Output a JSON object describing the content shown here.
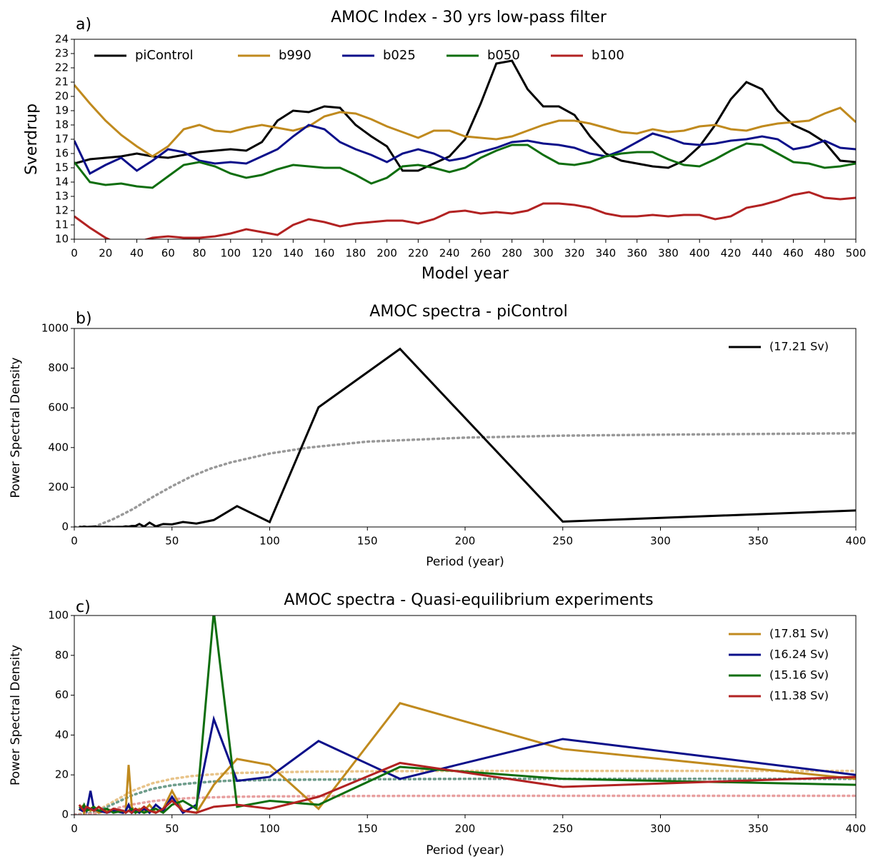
{
  "chart_data": [
    {
      "type": "line",
      "panel_label": "a)",
      "title": "AMOC Index - 30 yrs low-pass filter",
      "x_label": "Model year",
      "y_label": "Sverdrup",
      "x": [
        0,
        10,
        20,
        30,
        40,
        50,
        60,
        70,
        80,
        90,
        100,
        110,
        120,
        130,
        140,
        150,
        160,
        170,
        180,
        190,
        200,
        210,
        220,
        230,
        240,
        250,
        260,
        270,
        280,
        290,
        300,
        310,
        320,
        330,
        340,
        350,
        360,
        370,
        380,
        390,
        400,
        410,
        420,
        430,
        440,
        450,
        460,
        470,
        480,
        490,
        500
      ],
      "series": [
        {
          "name": "piControl",
          "color": "#000000",
          "values": [
            15.3,
            15.6,
            15.7,
            15.8,
            16,
            15.8,
            15.7,
            15.9,
            16.1,
            16.2,
            16.3,
            16.2,
            16.8,
            18.3,
            19,
            18.9,
            19.3,
            19.2,
            18,
            17.2,
            16.5,
            14.8,
            14.8,
            15.3,
            15.8,
            17,
            19.5,
            22.3,
            22.5,
            20.5,
            19.3,
            19.3,
            18.7,
            17.2,
            16,
            15.5,
            15.3,
            15.1,
            15,
            15.5,
            16.5,
            18,
            19.8,
            21,
            20.5,
            19,
            18,
            17.5,
            16.8,
            15.5,
            15.4
          ]
        },
        {
          "name": "b990",
          "color": "#c08a1e",
          "values": [
            20.8,
            19.5,
            18.3,
            17.3,
            16.5,
            15.8,
            16.5,
            17.7,
            18,
            17.6,
            17.5,
            17.8,
            18,
            17.8,
            17.6,
            17.9,
            18.6,
            18.9,
            18.8,
            18.4,
            17.9,
            17.5,
            17.1,
            17.6,
            17.6,
            17.2,
            17.1,
            17,
            17.2,
            17.6,
            18,
            18.3,
            18.3,
            18.1,
            17.8,
            17.5,
            17.4,
            17.7,
            17.5,
            17.6,
            17.9,
            18,
            17.7,
            17.6,
            17.9,
            18.1,
            18.2,
            18.3,
            18.8,
            19.2,
            18.2
          ]
        },
        {
          "name": "b025",
          "color": "#0b0f8a",
          "values": [
            16.9,
            14.6,
            15.2,
            15.7,
            14.8,
            15.5,
            16.3,
            16.1,
            15.5,
            15.3,
            15.4,
            15.3,
            15.8,
            16.3,
            17.2,
            18,
            17.7,
            16.8,
            16.3,
            15.9,
            15.4,
            16,
            16.3,
            16,
            15.5,
            15.7,
            16.1,
            16.4,
            16.8,
            16.9,
            16.7,
            16.6,
            16.4,
            16,
            15.8,
            16.2,
            16.8,
            17.4,
            17.1,
            16.7,
            16.6,
            16.7,
            16.9,
            17,
            17.2,
            17,
            16.3,
            16.5,
            16.9,
            16.4,
            16.3
          ]
        },
        {
          "name": "b050",
          "color": "#0e6e0e",
          "values": [
            15.4,
            14,
            13.8,
            13.9,
            13.7,
            13.6,
            14.4,
            15.2,
            15.4,
            15.1,
            14.6,
            14.3,
            14.5,
            14.9,
            15.2,
            15.1,
            15,
            15,
            14.5,
            13.9,
            14.3,
            15.1,
            15.2,
            15,
            14.7,
            15,
            15.7,
            16.2,
            16.6,
            16.6,
            15.9,
            15.3,
            15.2,
            15.4,
            15.8,
            16,
            16.1,
            16.1,
            15.6,
            15.2,
            15.1,
            15.6,
            16.2,
            16.7,
            16.6,
            16,
            15.4,
            15.3,
            15,
            15.1,
            15.3
          ]
        },
        {
          "name": "b100",
          "color": "#b22222",
          "values": [
            11.6,
            10.8,
            10.1,
            9.6,
            9.8,
            10.1,
            10.2,
            10.1,
            10.1,
            10.2,
            10.4,
            10.7,
            10.5,
            10.3,
            11,
            11.4,
            11.2,
            10.9,
            11.1,
            11.2,
            11.3,
            11.3,
            11.1,
            11.4,
            11.9,
            12,
            11.8,
            11.9,
            11.8,
            12,
            12.5,
            12.5,
            12.4,
            12.2,
            11.8,
            11.6,
            11.6,
            11.7,
            11.6,
            11.7,
            11.7,
            11.4,
            11.6,
            12.2,
            12.4,
            12.7,
            13.1,
            13.3,
            12.9,
            12.8,
            12.9
          ]
        }
      ],
      "xlim": [
        0,
        500
      ],
      "xticks": [
        0,
        20,
        40,
        60,
        80,
        100,
        120,
        140,
        160,
        180,
        200,
        220,
        240,
        260,
        280,
        300,
        320,
        340,
        360,
        380,
        400,
        420,
        440,
        460,
        480,
        500
      ],
      "ylim": [
        10,
        24
      ],
      "yticks": [
        10,
        11,
        12,
        13,
        14,
        15,
        16,
        17,
        18,
        19,
        20,
        21,
        22,
        23,
        24
      ],
      "legend": "upper left"
    },
    {
      "type": "line",
      "panel_label": "b)",
      "title": "AMOC spectra - piControl",
      "x_label": "Period (year)",
      "y_label": "Power Spectral Density",
      "x": [
        2.5,
        4,
        5,
        6.3,
        8.3,
        10,
        12.5,
        16.7,
        20,
        25,
        26.3,
        27.8,
        29.4,
        31.3,
        33.3,
        35.7,
        38.5,
        41.7,
        45.5,
        50,
        55.6,
        62.5,
        71.4,
        83.3,
        100,
        125,
        166.7,
        250,
        400
      ],
      "series": [
        {
          "name": "(17.21 Sv)",
          "color": "#000000",
          "values": [
            1,
            0,
            2,
            0,
            1,
            2,
            0,
            1,
            0,
            1,
            3,
            2,
            5,
            5,
            15,
            2,
            22,
            3,
            15,
            13,
            25,
            17,
            35,
            105,
            25,
            603,
            897,
            27,
            83
          ]
        },
        {
          "style": "dotted",
          "color": "#999999",
          "x": [
            0,
            10,
            20,
            30,
            40,
            50,
            60,
            70,
            80,
            100,
            120,
            150,
            200,
            250,
            300,
            400
          ],
          "values": [
            0,
            0,
            40,
            90,
            150,
            205,
            255,
            295,
            325,
            370,
            400,
            430,
            450,
            460,
            465,
            472
          ]
        }
      ],
      "xlim": [
        0,
        400
      ],
      "xticks": [
        0,
        50,
        100,
        150,
        200,
        250,
        300,
        350,
        400
      ],
      "ylim": [
        0,
        1000
      ],
      "yticks": [
        0,
        200,
        400,
        600,
        800,
        1000
      ],
      "legend": "upper right"
    },
    {
      "type": "line",
      "panel_label": "c)",
      "title": "AMOC spectra - Quasi-equilibrium experiments",
      "x_label": "Period (year)",
      "y_label": "Power Spectral Density",
      "x": [
        2.5,
        4,
        5,
        6.3,
        8.3,
        10,
        12.5,
        16.7,
        20,
        25,
        26.3,
        27.8,
        29.4,
        31.3,
        33.3,
        35.7,
        38.5,
        41.7,
        45.5,
        50,
        55.6,
        62.5,
        71.4,
        83.3,
        100,
        125,
        166.7,
        250,
        400
      ],
      "series": [
        {
          "name": "(17.81 Sv)",
          "color": "#c08a1e",
          "values": [
            2,
            4,
            1,
            3,
            2,
            3,
            1,
            2,
            2,
            1,
            2,
            25,
            4,
            1,
            3,
            2,
            5,
            1,
            3,
            12,
            2,
            1,
            15,
            28,
            25,
            3,
            56,
            33,
            18
          ]
        },
        {
          "name": "(16.24 Sv)",
          "color": "#0b0f8a",
          "values": [
            3,
            2,
            4,
            2,
            12,
            3,
            2,
            1,
            2,
            1,
            2,
            5,
            1,
            2,
            1,
            3,
            1,
            5,
            2,
            9,
            1,
            5,
            48,
            17,
            19,
            37,
            18,
            38,
            20
          ]
        },
        {
          "name": "(15.16 Sv)",
          "color": "#0e6e0e",
          "values": [
            4,
            3,
            5,
            2,
            3,
            4,
            2,
            3,
            1,
            2,
            1,
            2,
            3,
            1,
            2,
            1,
            2,
            3,
            1,
            5,
            7,
            3,
            102,
            4,
            7,
            5,
            24,
            18,
            15
          ]
        },
        {
          "name": "(11.38 Sv)",
          "color": "#b22222",
          "values": [
            5,
            3,
            2,
            4,
            3,
            2,
            4,
            1,
            3,
            2,
            1,
            2,
            1,
            3,
            2,
            4,
            2,
            1,
            3,
            7,
            2,
            1,
            4,
            5,
            3,
            9,
            26,
            14,
            19
          ]
        },
        {
          "style": "dotted",
          "color": "#e8c48a",
          "x": [
            0,
            10,
            20,
            30,
            40,
            50,
            60,
            70,
            80,
            100,
            120,
            150,
            200,
            250,
            300,
            400
          ],
          "values": [
            0,
            1.1,
            6.6,
            12.1,
            15.8,
            18,
            19.4,
            20.2,
            20.9,
            21.3,
            21.6,
            21.8,
            22,
            22,
            22,
            22
          ]
        },
        {
          "style": "dotted",
          "color": "#7f84c0",
          "x": [
            0,
            10,
            20,
            30,
            40,
            50,
            60,
            70,
            80,
            100,
            120,
            150,
            200,
            250,
            300,
            400
          ],
          "values": [
            0,
            0.9,
            5.4,
            9.9,
            13,
            14.8,
            15.8,
            16.6,
            17.1,
            17.5,
            17.6,
            17.8,
            18,
            18,
            18,
            18
          ]
        },
        {
          "style": "dotted",
          "color": "#6f9f8a",
          "x": [
            0,
            10,
            20,
            30,
            40,
            50,
            60,
            70,
            80,
            100,
            120,
            150,
            200,
            250,
            300,
            400
          ],
          "values": [
            0,
            0.9,
            5.4,
            9.9,
            13,
            14.8,
            15.8,
            16.6,
            17.1,
            17.5,
            17.6,
            17.8,
            18,
            18,
            18,
            18
          ]
        },
        {
          "style": "dotted",
          "color": "#e8a0a0",
          "x": [
            0,
            10,
            20,
            30,
            40,
            50,
            60,
            70,
            80,
            100,
            120,
            150,
            200,
            250,
            300,
            400
          ],
          "values": [
            0,
            0.5,
            2.9,
            5.2,
            6.8,
            7.8,
            8.4,
            8.7,
            9,
            9.2,
            9.3,
            9.4,
            9.5,
            9.5,
            9.5,
            9.5
          ]
        }
      ],
      "xlim": [
        0,
        400
      ],
      "xticks": [
        0,
        50,
        100,
        150,
        200,
        250,
        300,
        350,
        400
      ],
      "ylim": [
        0,
        100
      ],
      "yticks": [
        0,
        20,
        40,
        60,
        80,
        100
      ],
      "legend": "upper right"
    }
  ]
}
